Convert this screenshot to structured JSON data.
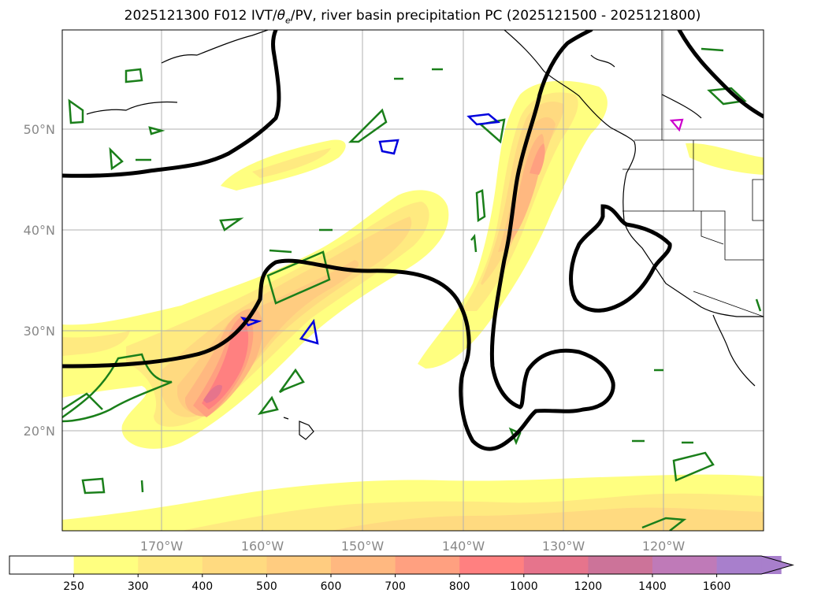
{
  "title": {
    "prefix": "2025121300 F012 IVT/",
    "theta": "θ",
    "theta_sub": "e",
    "suffix": "/PV, river basin precipitation PC (2025121500 - 2025121800)"
  },
  "chart_data": {
    "type": "map",
    "latitude_labels": [
      "50°N",
      "40°N",
      "30°N",
      "20°N"
    ],
    "longitude_labels": [
      "170°W",
      "160°W",
      "150°W",
      "140°W",
      "130°W",
      "120°W"
    ],
    "colorbar": {
      "levels": [
        250,
        300,
        400,
        500,
        600,
        700,
        800,
        1000,
        1200,
        1400,
        1600
      ],
      "level_labels": [
        "250",
        "300",
        "400",
        "500",
        "600",
        "700",
        "800",
        "1000",
        "1200",
        "1400",
        "1600"
      ],
      "colors": [
        "#ffffff",
        "#ffff80",
        "#ffea80",
        "#ffda80",
        "#ffcc80",
        "#ffb880",
        "#ffa080",
        "#ff8080",
        "#e6748c",
        "#cc7399",
        "#bf7ab8",
        "#a87fcc"
      ],
      "extend": "max"
    },
    "grid": true
  }
}
